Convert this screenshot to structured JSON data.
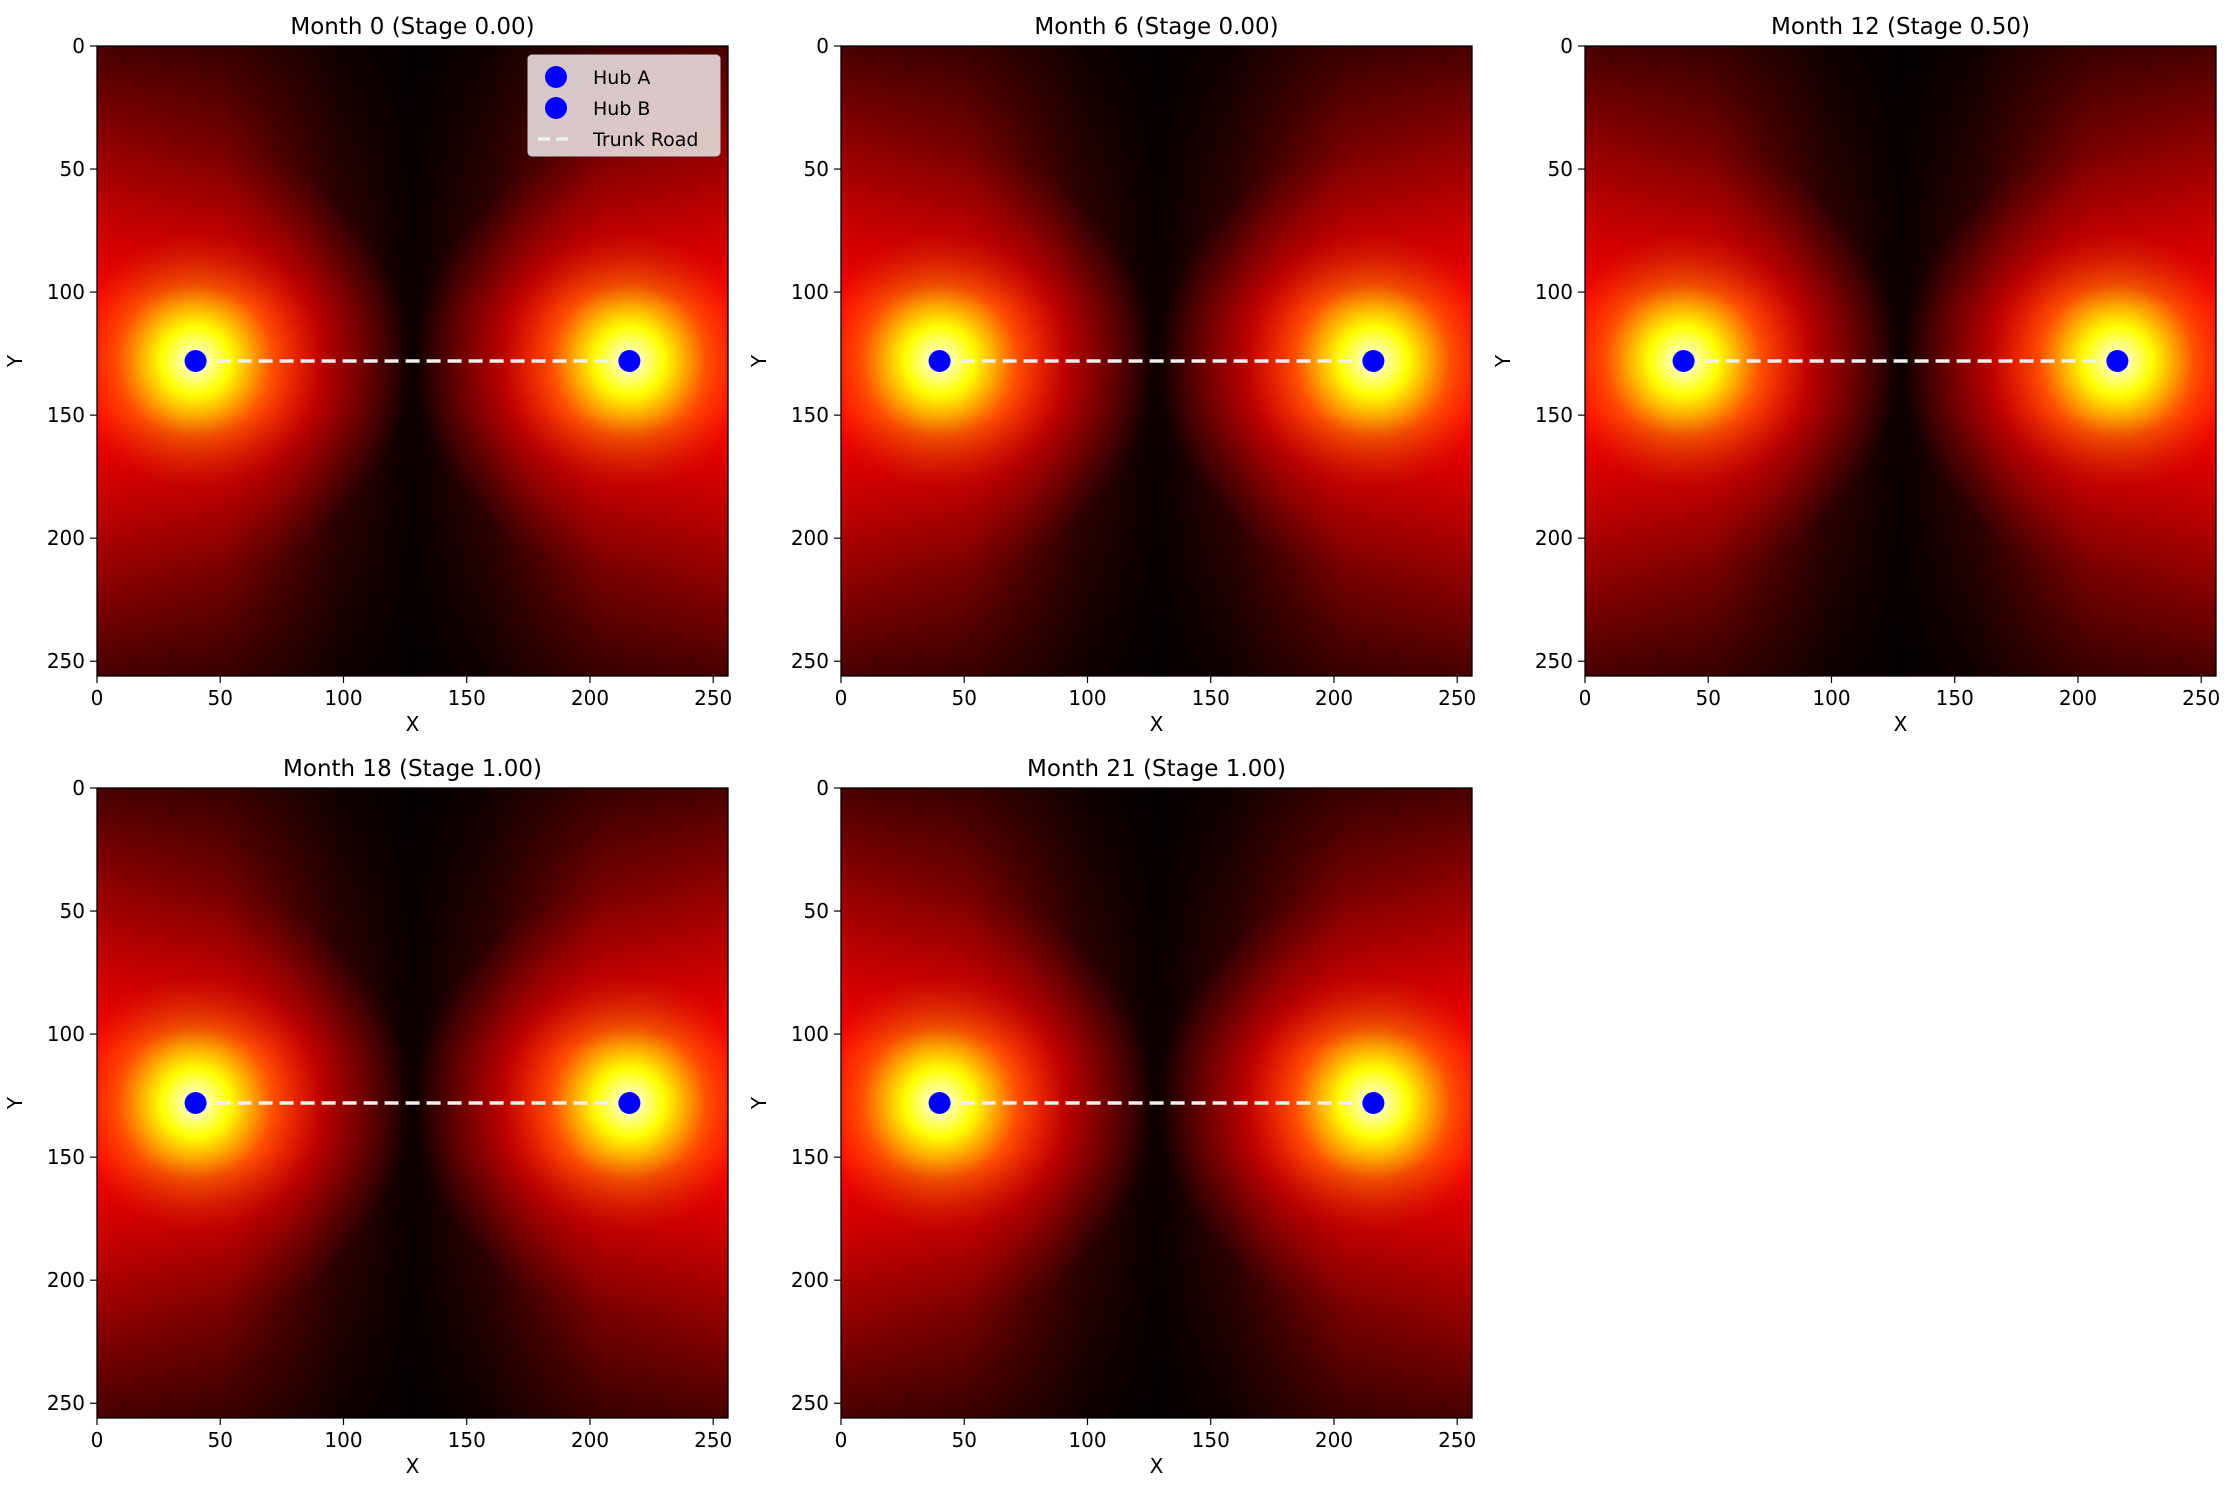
{
  "chart_data": [
    {
      "type": "heatmap",
      "title": "Month 0 (Stage 0.00)",
      "xlabel": "X",
      "ylabel": "Y",
      "xlim": [
        0,
        256
      ],
      "ylim": [
        256,
        0
      ],
      "xticks": [
        "0",
        "50",
        "100",
        "150",
        "200",
        "250"
      ],
      "yticks": [
        "0",
        "50",
        "100",
        "150",
        "200",
        "250"
      ],
      "colormap": "hot",
      "hubs": [
        {
          "name": "Hub A",
          "x": 40,
          "y": 128
        },
        {
          "name": "Hub B",
          "x": 216,
          "y": 128
        }
      ],
      "road": {
        "name": "Trunk Road",
        "x": [
          40,
          216
        ],
        "y": [
          128,
          128
        ]
      },
      "legend": [
        "Hub A",
        "Hub B",
        "Trunk Road"
      ],
      "legend_position": "upper-right"
    },
    {
      "type": "heatmap",
      "title": "Month 6 (Stage 0.00)",
      "xlabel": "X",
      "ylabel": "Y",
      "xlim": [
        0,
        256
      ],
      "ylim": [
        256,
        0
      ],
      "xticks": [
        "0",
        "50",
        "100",
        "150",
        "200",
        "250"
      ],
      "yticks": [
        "0",
        "50",
        "100",
        "150",
        "200",
        "250"
      ],
      "colormap": "hot",
      "hubs": [
        {
          "name": "Hub A",
          "x": 40,
          "y": 128
        },
        {
          "name": "Hub B",
          "x": 216,
          "y": 128
        }
      ],
      "road": {
        "name": "Trunk Road",
        "x": [
          40,
          216
        ],
        "y": [
          128,
          128
        ]
      }
    },
    {
      "type": "heatmap",
      "title": "Month 12 (Stage 0.50)",
      "xlabel": "X",
      "ylabel": "Y",
      "xlim": [
        0,
        256
      ],
      "ylim": [
        256,
        0
      ],
      "xticks": [
        "0",
        "50",
        "100",
        "150",
        "200",
        "250"
      ],
      "yticks": [
        "0",
        "50",
        "100",
        "150",
        "200",
        "250"
      ],
      "colormap": "hot",
      "hubs": [
        {
          "name": "Hub A",
          "x": 40,
          "y": 128
        },
        {
          "name": "Hub B",
          "x": 216,
          "y": 128
        }
      ],
      "road": {
        "name": "Trunk Road",
        "x": [
          40,
          216
        ],
        "y": [
          128,
          128
        ]
      }
    },
    {
      "type": "heatmap",
      "title": "Month 18 (Stage 1.00)",
      "xlabel": "X",
      "ylabel": "Y",
      "xlim": [
        0,
        256
      ],
      "ylim": [
        256,
        0
      ],
      "xticks": [
        "0",
        "50",
        "100",
        "150",
        "200",
        "250"
      ],
      "yticks": [
        "0",
        "50",
        "100",
        "150",
        "200",
        "250"
      ],
      "colormap": "hot",
      "hubs": [
        {
          "name": "Hub A",
          "x": 40,
          "y": 128
        },
        {
          "name": "Hub B",
          "x": 216,
          "y": 128
        }
      ],
      "road": {
        "name": "Trunk Road",
        "x": [
          40,
          216
        ],
        "y": [
          128,
          128
        ]
      }
    },
    {
      "type": "heatmap",
      "title": "Month 21 (Stage 1.00)",
      "xlabel": "X",
      "ylabel": "Y",
      "xlim": [
        0,
        256
      ],
      "ylim": [
        256,
        0
      ],
      "xticks": [
        "0",
        "50",
        "100",
        "150",
        "200",
        "250"
      ],
      "yticks": [
        "0",
        "50",
        "100",
        "150",
        "200",
        "250"
      ],
      "colormap": "hot",
      "hubs": [
        {
          "name": "Hub A",
          "x": 40,
          "y": 128
        },
        {
          "name": "Hub B",
          "x": 216,
          "y": 128
        }
      ],
      "road": {
        "name": "Trunk Road",
        "x": [
          40,
          216
        ],
        "y": [
          128,
          128
        ]
      }
    }
  ],
  "colors": {
    "hub": "#0000ff",
    "road": "#f0f0f0",
    "legend_bg": "#e0d2d2"
  }
}
